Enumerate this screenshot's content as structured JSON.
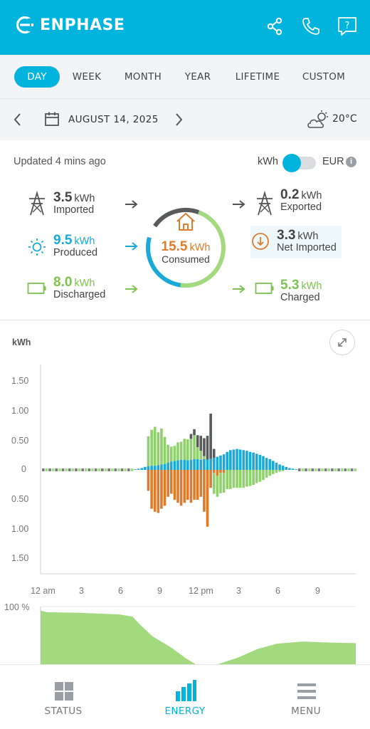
{
  "brand": "ENPHASE",
  "colors": {
    "accent": "#01b4de",
    "grid": "#595a5c",
    "solar": "#1ba9d8",
    "battery": "#8fd16a",
    "consumed": "#e07b2c",
    "soc_fill": "#a3d97f"
  },
  "header_icons": [
    "share-icon",
    "phone-icon",
    "help-icon"
  ],
  "tabs": [
    {
      "label": "DAY",
      "active": true
    },
    {
      "label": "WEEK",
      "active": false
    },
    {
      "label": "MONTH",
      "active": false
    },
    {
      "label": "YEAR",
      "active": false
    },
    {
      "label": "LIFETIME",
      "active": false
    },
    {
      "label": "CUSTOM",
      "active": false
    }
  ],
  "date": "AUGUST 14, 2025",
  "weather": {
    "icon": "cloud-sun-icon",
    "temperature": "20°C"
  },
  "updated": "Updated 4 mins ago",
  "units": {
    "left": "kWh",
    "right": "EUR",
    "selected": "kWh"
  },
  "summary": {
    "imported": {
      "value": "3.5",
      "unit": "kWh",
      "label": "Imported"
    },
    "produced": {
      "value": "9.5",
      "unit": "kWh",
      "label": "Produced"
    },
    "discharged": {
      "value": "8.0",
      "unit": "kWh",
      "label": "Discharged"
    },
    "consumed": {
      "value": "15.5",
      "unit": "kWh",
      "label": "Consumed"
    },
    "exported": {
      "value": "0.2",
      "unit": "kWh",
      "label": "Exported"
    },
    "net_imported": {
      "value": "3.3",
      "unit": "kWh",
      "label": "Net Imported"
    },
    "charged": {
      "value": "5.3",
      "unit": "kWh",
      "label": "Charged"
    }
  },
  "chart_data": [
    {
      "type": "bar",
      "ylabel": "kWh",
      "ylim": [
        -1.75,
        1.75
      ],
      "yticks": [
        "1.50",
        "1.00",
        "0.50",
        "0",
        "0.50",
        "1.00",
        "1.50"
      ],
      "xticks": [
        "12 am",
        "3",
        "6",
        "9",
        "12 pm",
        "3",
        "6",
        "9"
      ],
      "interval_hours": 0.25,
      "series": [
        {
          "key": "solar",
          "values": [
            0,
            0,
            0,
            0,
            0,
            0,
            0,
            0,
            0,
            0,
            0,
            0,
            0,
            0,
            0,
            0,
            0,
            0,
            0,
            0,
            0,
            0,
            0,
            0,
            0,
            0,
            0,
            0,
            0.01,
            0.02,
            0.03,
            0.05,
            0.06,
            0.07,
            0.07,
            0.08,
            0.09,
            0.1,
            0.12,
            0.14,
            0.15,
            0.16,
            0.17,
            0.17,
            0.16,
            0.17,
            0.18,
            0.18,
            0.17,
            0.18,
            0.17,
            0.19,
            0.2,
            0.22,
            0.24,
            0.26,
            0.3,
            0.33,
            0.34,
            0.35,
            0.34,
            0.33,
            0.32,
            0.3,
            0.29,
            0.27,
            0.25,
            0.23,
            0.2,
            0.18,
            0.15,
            0.12,
            0.09,
            0.07,
            0.05,
            0.03,
            0.02,
            0.01,
            0,
            0,
            0,
            0,
            0,
            0,
            0,
            0,
            0,
            0,
            0,
            0,
            0,
            0,
            0,
            0,
            0,
            0
          ]
        },
        {
          "key": "battery_discharge",
          "values": [
            0,
            0,
            0,
            0,
            0,
            0,
            0,
            0,
            0,
            0,
            0,
            0,
            0,
            0,
            0,
            0,
            0,
            0,
            0,
            0,
            0,
            0,
            0,
            0,
            0,
            0,
            0,
            0,
            0,
            0,
            0,
            0,
            0.5,
            0.6,
            0.65,
            0.55,
            0.6,
            0.45,
            0.3,
            0.25,
            0.25,
            0.3,
            0.3,
            0.35,
            0.35,
            0.35,
            0.4,
            0.2,
            0.15,
            0.05,
            0,
            0,
            0,
            0,
            0,
            0,
            0,
            0,
            0,
            0,
            0,
            0,
            0,
            0,
            0,
            0,
            0,
            0,
            0,
            0,
            0,
            0,
            0,
            0,
            0,
            0,
            0,
            0,
            0,
            0,
            0,
            0,
            0,
            0,
            0,
            0,
            0,
            0,
            0,
            0,
            0,
            0,
            0,
            0,
            0,
            0
          ]
        },
        {
          "key": "grid_import",
          "values": [
            0,
            0,
            0,
            0,
            0,
            0,
            0,
            0,
            0,
            0,
            0,
            0,
            0,
            0,
            0,
            0,
            0,
            0,
            0,
            0,
            0,
            0,
            0,
            0,
            0,
            0,
            0,
            0,
            0,
            0,
            0,
            0,
            0,
            0,
            0,
            0,
            0,
            0,
            0,
            0,
            0,
            0,
            0,
            0,
            0,
            0.08,
            0.1,
            0.2,
            0.25,
            0.3,
            0.4,
            0.75,
            0.15,
            0,
            0,
            0,
            0,
            0,
            0,
            0,
            0,
            0,
            0,
            0,
            0,
            0,
            0,
            0,
            0,
            0,
            0,
            0,
            0,
            0,
            0,
            0,
            0,
            0,
            0,
            0,
            0,
            0,
            0,
            0,
            0,
            0,
            0,
            0,
            0,
            0,
            0,
            0,
            0,
            0,
            0,
            0
          ]
        },
        {
          "key": "consumption",
          "values": [
            0,
            0,
            0,
            0,
            0,
            0,
            0,
            0,
            0,
            0,
            0,
            0,
            0,
            0,
            0,
            0,
            0,
            0,
            0,
            0,
            0,
            0,
            0,
            0,
            0,
            0,
            0,
            0,
            0,
            0,
            0,
            0,
            -0.35,
            -0.65,
            -0.7,
            -0.72,
            -0.65,
            -0.6,
            -0.45,
            -0.4,
            -0.5,
            -0.55,
            -0.6,
            -0.55,
            -0.5,
            -0.55,
            -0.5,
            -0.5,
            -0.45,
            -0.7,
            -0.95,
            -0.3,
            -0.05,
            -0.1,
            -0.05,
            -0.05,
            0,
            0,
            0,
            0,
            0,
            0,
            0,
            0,
            0,
            0,
            0,
            0,
            0,
            0,
            0,
            0,
            0,
            0,
            0,
            0,
            0,
            0,
            0,
            0,
            0,
            0,
            0,
            0,
            0,
            0,
            0,
            0,
            0,
            0,
            0,
            0,
            0,
            0,
            0,
            0
          ]
        },
        {
          "key": "battery_charge",
          "values": [
            0,
            0,
            0,
            0,
            0,
            0,
            0,
            0,
            0,
            0,
            0,
            0,
            0,
            0,
            0,
            0,
            0,
            0,
            0,
            0,
            0,
            0,
            0,
            0,
            0,
            0,
            0,
            0,
            0,
            0,
            0,
            0,
            0,
            0,
            0,
            0,
            0,
            0,
            0,
            0,
            0,
            0,
            0,
            0,
            0,
            0,
            0,
            0,
            0,
            0,
            0,
            0,
            -0.35,
            -0.35,
            -0.34,
            -0.33,
            -0.32,
            -0.32,
            -0.3,
            -0.3,
            -0.3,
            -0.3,
            -0.28,
            -0.27,
            -0.25,
            -0.22,
            -0.2,
            -0.17,
            -0.13,
            -0.1,
            -0.07,
            -0.05,
            -0.03,
            -0.02,
            0,
            0,
            0,
            0,
            0,
            0,
            0,
            0,
            0,
            0,
            0,
            0,
            0,
            0,
            0,
            0,
            0,
            0,
            0,
            0,
            0,
            0
          ]
        }
      ]
    },
    {
      "type": "area",
      "ylabel": "100 %",
      "ylim": [
        0,
        100
      ],
      "x_hours": [
        0,
        0.5,
        3,
        6,
        7,
        7.5,
        8.5,
        10,
        11,
        11.8,
        13.5,
        15,
        16.5,
        18,
        20,
        22,
        24
      ],
      "values": [
        99,
        96,
        95,
        92,
        88,
        75,
        52,
        30,
        12,
        0,
        0,
        12,
        28,
        38,
        42,
        40,
        39
      ]
    }
  ],
  "nav": [
    {
      "label": "STATUS",
      "icon": "grid-icon",
      "active": false
    },
    {
      "label": "ENERGY",
      "icon": "bar-chart-icon",
      "active": true
    },
    {
      "label": "MENU",
      "icon": "menu-icon",
      "active": false
    }
  ]
}
